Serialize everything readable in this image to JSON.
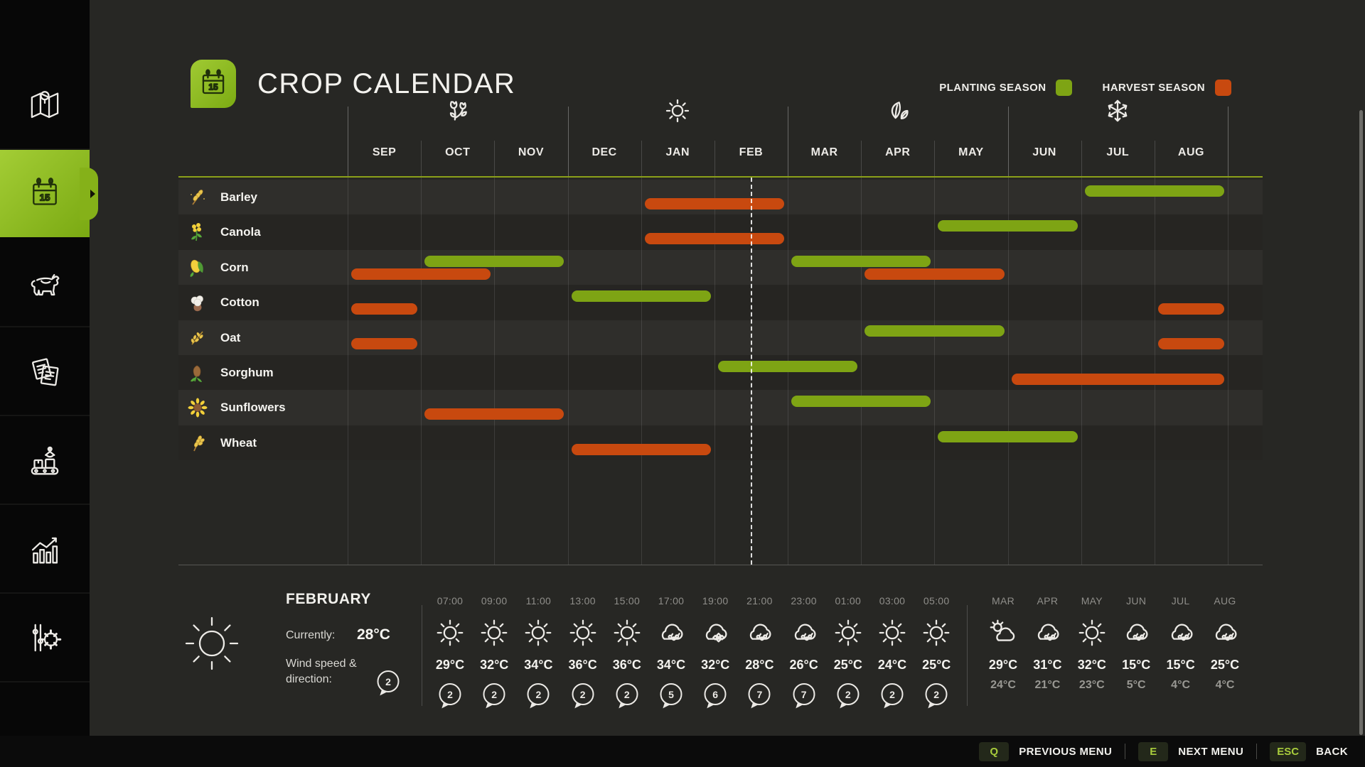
{
  "header": {
    "title": "CROP CALENDAR"
  },
  "legend": {
    "planting_label": "PLANTING SEASON",
    "harvest_label": "HARVEST SEASON",
    "planting_color": "#7ea414",
    "harvest_color": "#c8490f"
  },
  "sidebar": {
    "items": [
      {
        "id": "map",
        "icon": "map-icon",
        "active": false
      },
      {
        "id": "calendar",
        "icon": "calendar-icon",
        "active": true
      },
      {
        "id": "animals",
        "icon": "cow-icon",
        "active": false
      },
      {
        "id": "contracts",
        "icon": "documents-icon",
        "active": false
      },
      {
        "id": "production",
        "icon": "production-icon",
        "active": false
      },
      {
        "id": "statistics",
        "icon": "statistics-icon",
        "active": false
      },
      {
        "id": "settings",
        "icon": "settings-sliders-icon",
        "active": false
      }
    ]
  },
  "chart_data": {
    "type": "bar",
    "subtype": "gantt_crop_calendar",
    "title": "CROP CALENDAR",
    "months": [
      "SEP",
      "OCT",
      "NOV",
      "DEC",
      "JAN",
      "FEB",
      "MAR",
      "APR",
      "MAY",
      "JUN",
      "JUL",
      "AUG"
    ],
    "season_icons": [
      {
        "icon": "flower-icon"
      },
      {
        "icon": "sun-icon"
      },
      {
        "icon": "leaves-icon"
      },
      {
        "icon": "snowflake-icon"
      }
    ],
    "legend": {
      "planting": "PLANTING SEASON",
      "harvest": "HARVEST SEASON"
    },
    "current_date_marker_month_index": 5.5,
    "crops": [
      {
        "name": "Barley",
        "icon": "barley-icon",
        "bars": [
          {
            "kind": "harvest",
            "from": "JAN",
            "to": "FEB",
            "start": 4,
            "end": 6
          },
          {
            "kind": "planting",
            "from": "JUL",
            "to": "AUG",
            "start": 10,
            "end": 12
          }
        ]
      },
      {
        "name": "Canola",
        "icon": "canola-icon",
        "bars": [
          {
            "kind": "harvest",
            "from": "JAN",
            "to": "FEB",
            "start": 4,
            "end": 6
          },
          {
            "kind": "planting",
            "from": "MAY",
            "to": "JUN",
            "start": 8,
            "end": 10
          }
        ]
      },
      {
        "name": "Corn",
        "icon": "corn-icon",
        "bars": [
          {
            "kind": "planting",
            "from": "OCT",
            "to": "NOV",
            "start": 1,
            "end": 3
          },
          {
            "kind": "harvest",
            "from": "SEP",
            "to": "OCT",
            "start": 0,
            "end": 2
          },
          {
            "kind": "planting",
            "from": "MAR",
            "to": "APR",
            "start": 6,
            "end": 8
          },
          {
            "kind": "harvest",
            "from": "APR",
            "to": "MAY",
            "start": 7,
            "end": 9
          }
        ]
      },
      {
        "name": "Cotton",
        "icon": "cotton-icon",
        "bars": [
          {
            "kind": "harvest",
            "from": "SEP",
            "to": "SEP",
            "start": 0,
            "end": 1
          },
          {
            "kind": "planting",
            "from": "DEC",
            "to": "JAN",
            "start": 3,
            "end": 5
          },
          {
            "kind": "harvest",
            "from": "AUG",
            "to": "AUG",
            "start": 11,
            "end": 12
          }
        ]
      },
      {
        "name": "Oat",
        "icon": "oat-icon",
        "bars": [
          {
            "kind": "harvest",
            "from": "SEP",
            "to": "SEP",
            "start": 0,
            "end": 1
          },
          {
            "kind": "planting",
            "from": "APR",
            "to": "MAY",
            "start": 7,
            "end": 9
          },
          {
            "kind": "harvest",
            "from": "AUG",
            "to": "AUG",
            "start": 11,
            "end": 12
          }
        ]
      },
      {
        "name": "Sorghum",
        "icon": "sorghum-icon",
        "bars": [
          {
            "kind": "planting",
            "from": "FEB",
            "to": "MAR",
            "start": 5,
            "end": 7
          },
          {
            "kind": "harvest",
            "from": "JUN",
            "to": "AUG",
            "start": 9,
            "end": 12
          }
        ]
      },
      {
        "name": "Sunflowers",
        "icon": "sunflower-icon",
        "bars": [
          {
            "kind": "harvest",
            "from": "OCT",
            "to": "NOV",
            "start": 1,
            "end": 3
          },
          {
            "kind": "planting",
            "from": "MAR",
            "to": "APR",
            "start": 6,
            "end": 8
          }
        ]
      },
      {
        "name": "Wheat",
        "icon": "wheat-icon",
        "bars": [
          {
            "kind": "harvest",
            "from": "DEC",
            "to": "JAN",
            "start": 3,
            "end": 5
          },
          {
            "kind": "planting",
            "from": "MAY",
            "to": "JUN",
            "start": 8,
            "end": 10
          }
        ]
      }
    ]
  },
  "weather": {
    "current": {
      "month": "FEBRUARY",
      "condition_icon": "sun-icon",
      "currently_label": "Currently:",
      "temperature": "28°C",
      "wind_label": "Wind speed & direction:",
      "wind_value": "2"
    },
    "hourly": [
      {
        "time": "07:00",
        "icon": "sun-icon",
        "temp": "29°C",
        "wind": "2"
      },
      {
        "time": "09:00",
        "icon": "sun-icon",
        "temp": "32°C",
        "wind": "2"
      },
      {
        "time": "11:00",
        "icon": "sun-icon",
        "temp": "34°C",
        "wind": "2"
      },
      {
        "time": "13:00",
        "icon": "sun-icon",
        "temp": "36°C",
        "wind": "2"
      },
      {
        "time": "15:00",
        "icon": "sun-icon",
        "temp": "36°C",
        "wind": "2"
      },
      {
        "time": "17:00",
        "icon": "cloud-rain-icon",
        "temp": "34°C",
        "wind": "5"
      },
      {
        "time": "19:00",
        "icon": "cloud-hail-icon",
        "temp": "32°C",
        "wind": "6"
      },
      {
        "time": "21:00",
        "icon": "cloud-rain-icon",
        "temp": "28°C",
        "wind": "7"
      },
      {
        "time": "23:00",
        "icon": "cloud-rain-icon",
        "temp": "26°C",
        "wind": "7"
      },
      {
        "time": "01:00",
        "icon": "sun-icon",
        "temp": "25°C",
        "wind": "2"
      },
      {
        "time": "03:00",
        "icon": "sun-icon",
        "temp": "24°C",
        "wind": "2"
      },
      {
        "time": "05:00",
        "icon": "sun-icon",
        "temp": "25°C",
        "wind": "2"
      }
    ],
    "monthly": [
      {
        "month": "MAR",
        "icon": "sun-cloud-icon",
        "high": "29°C",
        "low": "24°C"
      },
      {
        "month": "APR",
        "icon": "cloud-rain-icon",
        "high": "31°C",
        "low": "21°C"
      },
      {
        "month": "MAY",
        "icon": "sun-icon",
        "high": "32°C",
        "low": "23°C"
      },
      {
        "month": "JUN",
        "icon": "cloud-rain-icon",
        "high": "15°C",
        "low": "5°C"
      },
      {
        "month": "JUL",
        "icon": "cloud-rain-icon",
        "high": "15°C",
        "low": "4°C"
      },
      {
        "month": "AUG",
        "icon": "cloud-rain-icon",
        "high": "25°C",
        "low": "4°C"
      }
    ]
  },
  "footer": {
    "buttons": [
      {
        "key": "Q",
        "label": "PREVIOUS MENU"
      },
      {
        "key": "E",
        "label": "NEXT MENU"
      },
      {
        "key": "ESC",
        "label": "BACK"
      }
    ]
  }
}
